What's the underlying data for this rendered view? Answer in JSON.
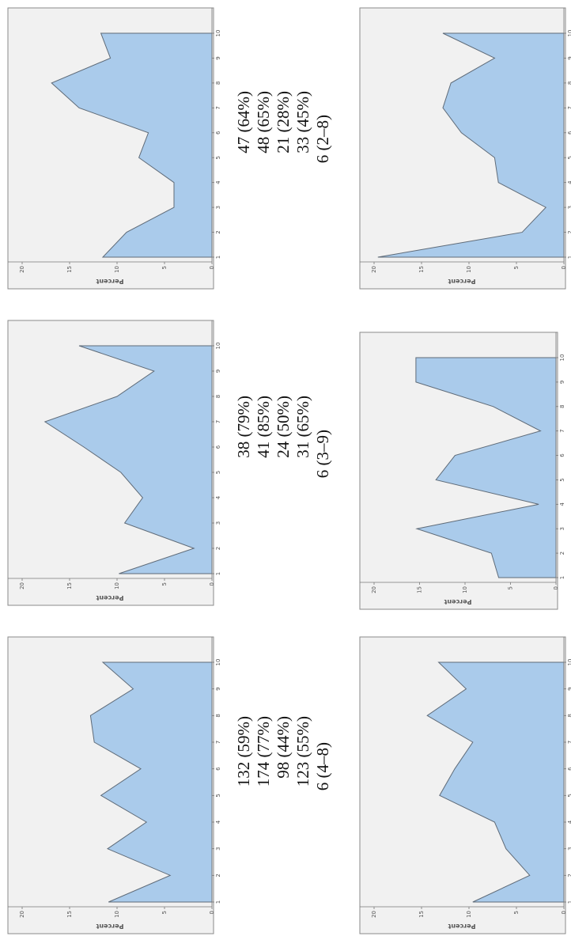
{
  "chart_data": [
    {
      "type": "area",
      "y_label": "Percent",
      "categories": [
        "1",
        "2",
        "3",
        "4",
        "5",
        "6",
        "7",
        "8",
        "9",
        "10"
      ],
      "values": [
        10.9,
        4.4,
        11,
        6.9,
        11.7,
        7.5,
        12.4,
        12.8,
        8.3,
        11.5
      ],
      "ylim": [
        0,
        20
      ],
      "yticks": [
        0,
        5,
        10,
        15,
        20
      ],
      "color": "#aacbeb",
      "line_color": "#5f6b78"
    },
    {
      "type": "area",
      "y_label": "Percent",
      "categories": [
        "1",
        "2",
        "3",
        "4",
        "5",
        "6",
        "7",
        "8",
        "9",
        "10"
      ],
      "values": [
        9.8,
        1.9,
        9.2,
        7.3,
        9.6,
        13.5,
        17.6,
        10,
        6.1,
        14
      ],
      "ylim": [
        0,
        20
      ],
      "yticks": [
        0,
        5,
        10,
        15,
        20
      ],
      "color": "#aacbeb",
      "line_color": "#5f6b78"
    },
    {
      "type": "area",
      "y_label": "Percent",
      "categories": [
        "1",
        "2",
        "3",
        "4",
        "5",
        "6",
        "7",
        "8",
        "9",
        "10"
      ],
      "values": [
        11.5,
        9,
        4,
        4,
        7.7,
        6.7,
        14,
        16.9,
        10.7,
        11.7
      ],
      "ylim": [
        0,
        20
      ],
      "yticks": [
        0,
        5,
        10,
        15,
        20
      ],
      "color": "#aacbeb",
      "line_color": "#5f6b78"
    },
    {
      "type": "area",
      "y_label": "Percent",
      "categories": [
        "1",
        "2",
        "3",
        "4",
        "5",
        "6",
        "7",
        "8",
        "9",
        "10"
      ],
      "values": [
        9.6,
        3.6,
        6.1,
        7.3,
        13.1,
        11.5,
        9.6,
        14.4,
        10.3,
        13.2
      ],
      "ylim": [
        0,
        20
      ],
      "yticks": [
        0,
        5,
        10,
        15,
        20
      ],
      "color": "#aacbeb",
      "line_color": "#5f6b78"
    },
    {
      "type": "area",
      "y_label": "Percent",
      "categories": [
        "1",
        "2",
        "3",
        "4",
        "5",
        "6",
        "7",
        "8",
        "9",
        "10"
      ],
      "values": [
        6.3,
        7.1,
        15.3,
        1.9,
        13.2,
        11.1,
        1.7,
        6.9,
        15.4,
        15.4
      ],
      "ylim": [
        0,
        20
      ],
      "yticks": [
        0,
        5,
        10,
        15,
        20
      ],
      "color": "#aacbeb",
      "line_color": "#5f6b78"
    },
    {
      "type": "area",
      "y_label": "Percent",
      "categories": [
        "1",
        "2",
        "3",
        "4",
        "5",
        "6",
        "7",
        "8",
        "9",
        "10"
      ],
      "values": [
        19.6,
        4.4,
        1.9,
        6.9,
        7.3,
        10.8,
        12.75,
        11.9,
        7.3,
        12.75
      ],
      "ylim": [
        0,
        20
      ],
      "yticks": [
        0,
        5,
        10,
        15,
        20
      ],
      "color": "#aacbeb",
      "line_color": "#5f6b78"
    }
  ],
  "text_blocks": [
    [
      "132 (59%)",
      "174 (77%)",
      "98 (44%)",
      "123 (55%)",
      "6 (4–8)"
    ],
    [
      "38 (79%)",
      "41 (85%)",
      "24 (50%)",
      "31 (65%)",
      "6 (3–9)"
    ],
    [
      "47 (64%)",
      "48 (65%)",
      "21 (28%)",
      "33 (45%)",
      "6 (2–8)"
    ]
  ]
}
